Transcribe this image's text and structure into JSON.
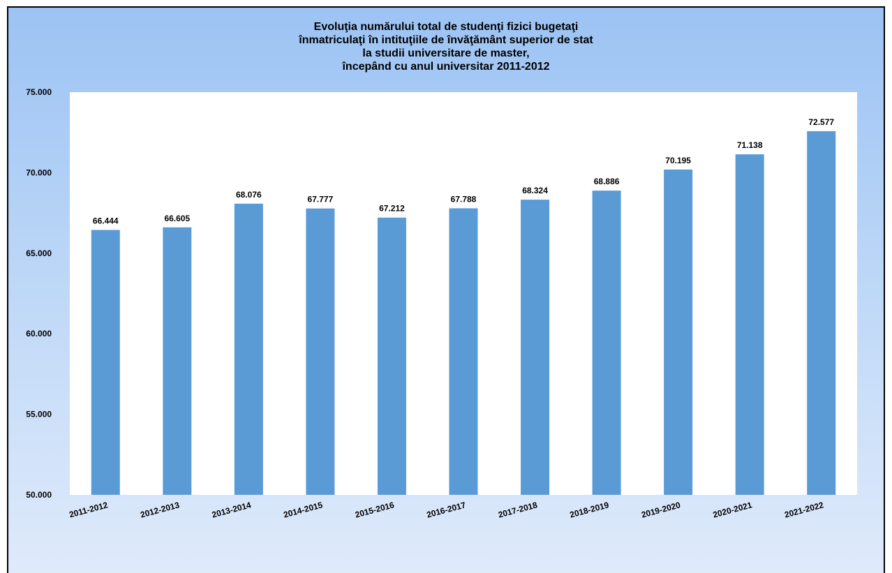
{
  "chart_data": {
    "type": "bar",
    "title_lines": [
      "Evoluţia numărului total de studenţi fizici bugetaţi",
      "înmatriculaţi în intituţiile de învăţământ superior de stat",
      "la studii universitare de master,",
      "începând cu anul universitar 2011-2012"
    ],
    "categories": [
      "2011-2012",
      "2012-2013",
      "2013-2014",
      "2014-2015",
      "2015-2016",
      "2016-2017",
      "2017-2018",
      "2018-2019",
      "2019-2020",
      "2020-2021",
      "2021-2022"
    ],
    "values": [
      66444,
      66605,
      68076,
      67777,
      67212,
      67788,
      68324,
      68886,
      70195,
      71138,
      72577
    ],
    "value_labels": [
      "66.444",
      "66.605",
      "68.076",
      "67.777",
      "67.212",
      "67.788",
      "68.324",
      "68.886",
      "70.195",
      "71.138",
      "72.577"
    ],
    "ylim": [
      50000,
      75000
    ],
    "yticks": [
      50000,
      55000,
      60000,
      65000,
      70000,
      75000
    ],
    "ytick_labels": [
      "50.000",
      "55.000",
      "60.000",
      "65.000",
      "70.000",
      "75.000"
    ],
    "xlabel": "",
    "ylabel": "",
    "grid": false,
    "legend": "none",
    "bar_color": "#5b9bd5",
    "plot_background": "#ffffff"
  }
}
